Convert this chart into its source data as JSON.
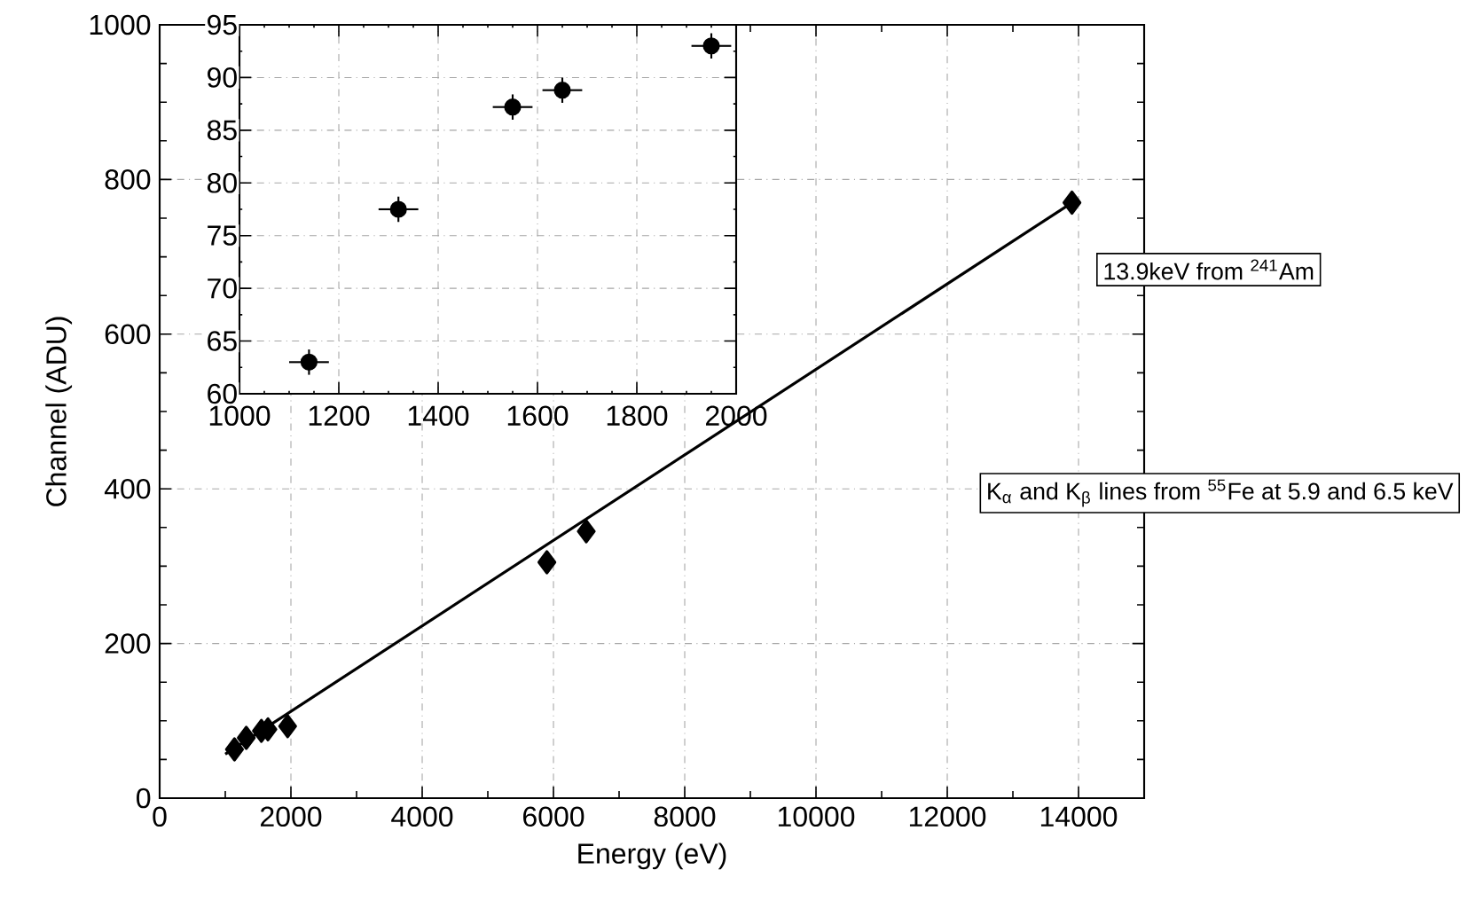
{
  "chart_data": [
    {
      "type": "scatter",
      "xlabel": "Energy (eV)",
      "ylabel": "Channel (ADU)",
      "xlim": [
        0,
        15000
      ],
      "ylim": [
        0,
        1000
      ],
      "xticks": [
        0,
        2000,
        4000,
        6000,
        8000,
        10000,
        12000,
        14000
      ],
      "yticks": [
        0,
        200,
        400,
        600,
        800,
        1000
      ],
      "grid": true,
      "marker": "diamond",
      "series": [
        {
          "color": "#000000",
          "x": [
            1140,
            1320,
            1550,
            1650,
            1950,
            5900,
            6500,
            13900
          ],
          "values": [
            63,
            78,
            87,
            89,
            93,
            305,
            345,
            770
          ]
        },
        {
          "type": "line",
          "marker": "none",
          "color": "#000000",
          "x": [
            1000,
            13900
          ],
          "values": [
            57,
            770
          ]
        }
      ],
      "annotations": [
        "13.9keV from $^{241}$Am",
        "K$_{α}$ and K$_{β}$ lines from $^{55}$Fe at 5.9 and 6.5 keV"
      ]
    },
    {
      "type": "scatter",
      "xlim": [
        1000,
        2000
      ],
      "ylim": [
        60,
        95
      ],
      "xticks": [
        1000,
        1200,
        1400,
        1600,
        1800,
        2000
      ],
      "yticks": [
        60,
        65,
        70,
        75,
        80,
        85,
        90,
        95
      ],
      "grid": true,
      "marker": "circle",
      "x": [
        1140,
        1320,
        1550,
        1650,
        1950
      ],
      "values": [
        63,
        77.5,
        87.2,
        88.8,
        93
      ],
      "errors": [
        1.2,
        1.2,
        1.2,
        1.2,
        1.2
      ],
      "xerrors": [
        40,
        40,
        40,
        40,
        40
      ],
      "color": "#000000"
    }
  ]
}
